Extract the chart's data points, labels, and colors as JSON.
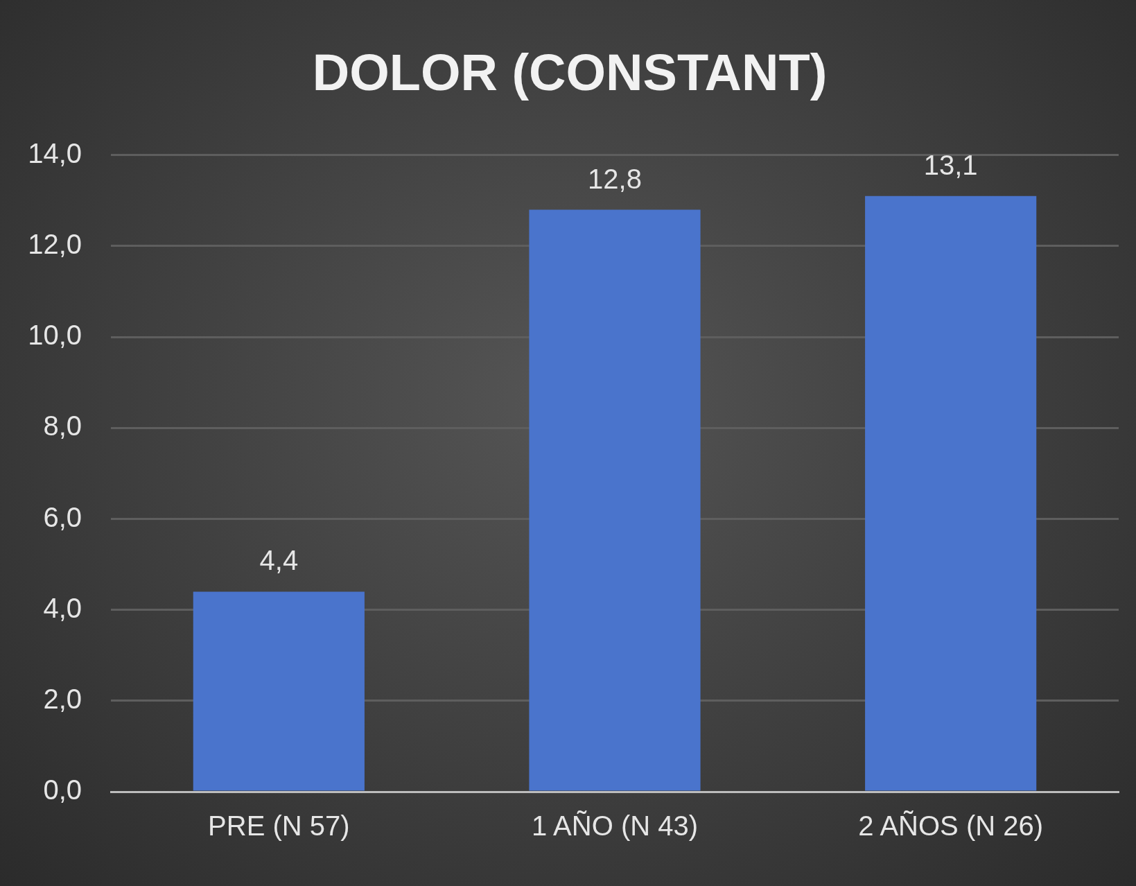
{
  "chart_data": {
    "type": "bar",
    "title": "DOLOR (CONSTANT)",
    "categories": [
      "PRE (N 57)",
      "1 AÑO (N 43)",
      "2 AÑOS (N 26)"
    ],
    "values": [
      4.4,
      12.8,
      13.1
    ],
    "value_labels": [
      "4,4",
      "12,8",
      "13,1"
    ],
    "color": "#4a74cc",
    "ylim": [
      0,
      14
    ],
    "yticks": [
      {
        "value": 0,
        "label": "0,0"
      },
      {
        "value": 2,
        "label": "2,0"
      },
      {
        "value": 4,
        "label": "4,0"
      },
      {
        "value": 6,
        "label": "6,0"
      },
      {
        "value": 8,
        "label": "8,0"
      },
      {
        "value": 10,
        "label": "10,0"
      },
      {
        "value": 12,
        "label": "12,0"
      },
      {
        "value": 14,
        "label": "14,0"
      }
    ],
    "grid": "y"
  }
}
